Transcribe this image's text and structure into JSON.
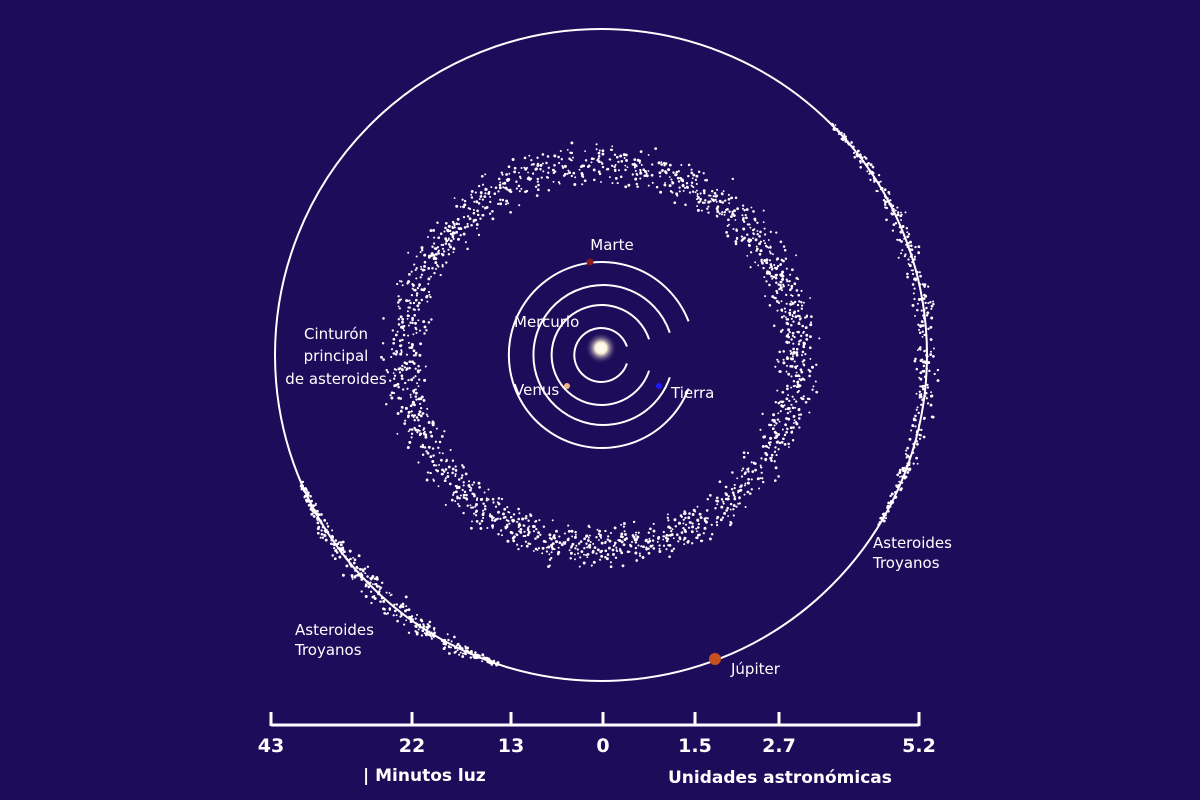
{
  "labels": {
    "marte": "Marte",
    "mercurio": "Mercurio",
    "venus": "Venus",
    "tierra": "Tierra",
    "belt_line1": "Cinturón",
    "belt_line2": "principal",
    "belt_line3": "de asteroides",
    "trojans_right_line1": "Asteroides",
    "trojans_right_line2": "Troyanos",
    "trojans_left_line1": "Asteroides",
    "trojans_left_line2": "Troyanos",
    "jupiter": "Júpiter"
  },
  "scale": {
    "ticks": [
      "43",
      "22",
      "13",
      "0",
      "1.5",
      "2.7",
      "5.2"
    ],
    "minutes_label": "| Minutos luz",
    "au_label": "Unidades astronómicas"
  },
  "colors": {
    "background": "#1c0c5a",
    "orbit": "#ffffff",
    "marte": "#8b1a1a",
    "venus": "#f4b183",
    "tierra": "#1a1aff",
    "jupiter": "#c8501e",
    "sun": "#fff6e0"
  }
}
